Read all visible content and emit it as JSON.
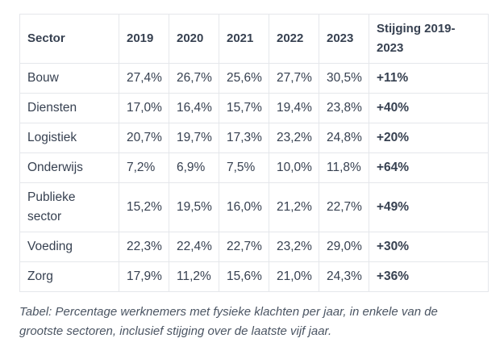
{
  "table": {
    "headers": [
      "Sector",
      "2019",
      "2020",
      "2021",
      "2022",
      "2023",
      "Stijging 2019-2023"
    ],
    "rows": [
      {
        "sector": "Bouw",
        "values": [
          "27,4%",
          "26,7%",
          "25,6%",
          "27,7%",
          "30,5%"
        ],
        "change": "+11%"
      },
      {
        "sector": "Diensten",
        "values": [
          "17,0%",
          "16,4%",
          "15,7%",
          "19,4%",
          "23,8%"
        ],
        "change": "+40%"
      },
      {
        "sector": "Logistiek",
        "values": [
          "20,7%",
          "19,7%",
          "17,3%",
          "23,2%",
          "24,8%"
        ],
        "change": "+20%"
      },
      {
        "sector": "Onderwijs",
        "values": [
          "7,2%",
          "6,9%",
          "7,5%",
          "10,0%",
          "11,8%"
        ],
        "change": "+64%"
      },
      {
        "sector": "Publieke sector",
        "values": [
          "15,2%",
          "19,5%",
          "16,0%",
          "21,2%",
          "22,7%"
        ],
        "change": "+49%"
      },
      {
        "sector": "Voeding",
        "values": [
          "22,3%",
          "22,4%",
          "22,7%",
          "23,2%",
          "29,0%"
        ],
        "change": "+30%"
      },
      {
        "sector": "Zorg",
        "values": [
          "17,9%",
          "11,2%",
          "15,6%",
          "21,0%",
          "24,3%"
        ],
        "change": "+36%"
      }
    ]
  },
  "caption": "Tabel: Percentage werknemers met fysieke klachten per jaar, in enkele van de grootste sectoren, inclusief stijging over de laatste vijf jaar."
}
